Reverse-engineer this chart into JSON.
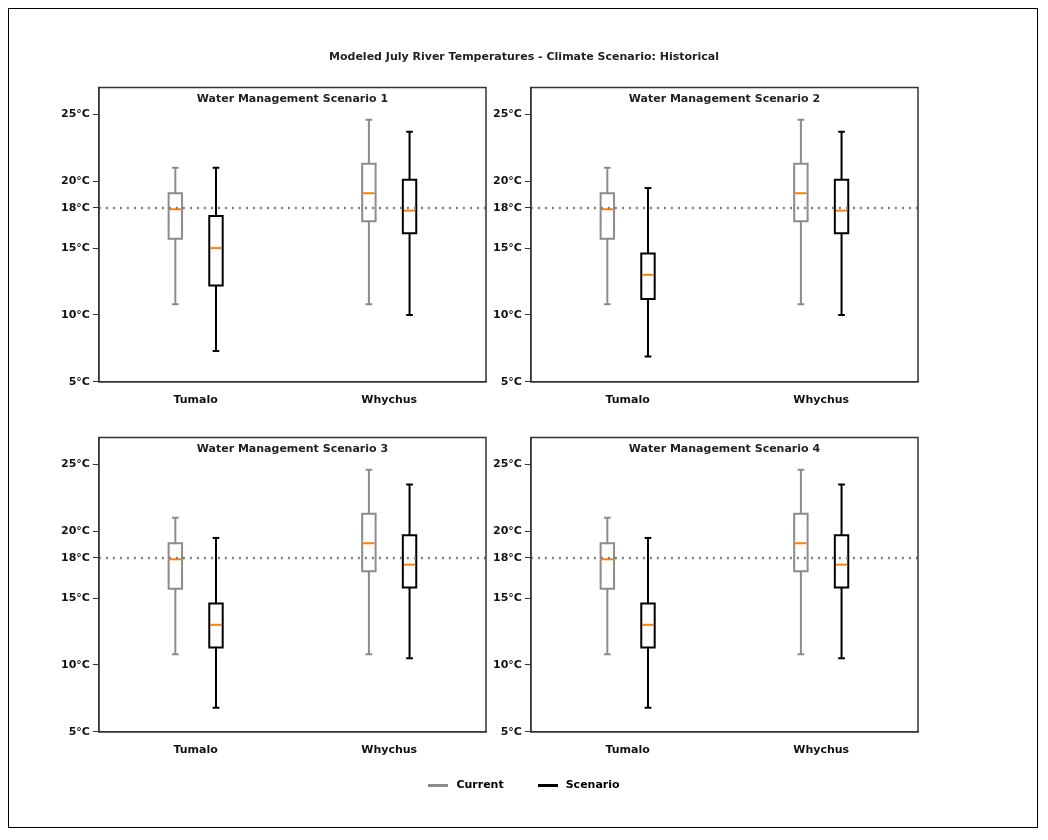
{
  "chart_data": [
    {
      "type": "box",
      "title": "Water Management Scenario 1",
      "annotations": [
        "Modeled July River Temperatures - Climate Scenario: Historical"
      ],
      "categories": [
        "Tumalo",
        "Whychus"
      ],
      "ylim": [
        5,
        27
      ],
      "yticks": [
        {
          "value": 5,
          "label": "5°C"
        },
        {
          "value": 10,
          "label": "10°C"
        },
        {
          "value": 15,
          "label": "15°C"
        },
        {
          "value": 18,
          "label": "18°C"
        },
        {
          "value": 20,
          "label": "20°C"
        },
        {
          "value": 25,
          "label": "25°C"
        }
      ],
      "grid": false,
      "legend": "bottom",
      "ref_lines": [
        {
          "axis": "y",
          "value": 18,
          "color": "#808080",
          "line_style": "dotted"
        }
      ],
      "series": [
        {
          "name": "Current",
          "color": "#8c8c8c",
          "boxes": [
            {
              "low": 10.8,
              "q1": 15.7,
              "median": 17.9,
              "q3": 19.1,
              "high": 21.0
            },
            {
              "low": 10.8,
              "q1": 17.0,
              "median": 19.1,
              "q3": 21.3,
              "high": 24.6
            }
          ]
        },
        {
          "name": "Scenario",
          "color": "#000000",
          "boxes": [
            {
              "low": 7.3,
              "q1": 12.2,
              "median": 15.0,
              "q3": 17.4,
              "high": 21.0
            },
            {
              "low": 10.0,
              "q1": 16.1,
              "median": 17.8,
              "q3": 20.1,
              "high": 23.7
            }
          ]
        }
      ]
    },
    {
      "type": "box",
      "title": "Water Management Scenario 2",
      "categories": [
        "Tumalo",
        "Whychus"
      ],
      "ylim": [
        5,
        27
      ],
      "yticks": [
        {
          "value": 5,
          "label": "5°C"
        },
        {
          "value": 10,
          "label": "10°C"
        },
        {
          "value": 15,
          "label": "15°C"
        },
        {
          "value": 18,
          "label": "18°C"
        },
        {
          "value": 20,
          "label": "20°C"
        },
        {
          "value": 25,
          "label": "25°C"
        }
      ],
      "grid": false,
      "ref_lines": [
        {
          "axis": "y",
          "value": 18,
          "color": "#808080",
          "line_style": "dotted"
        }
      ],
      "series": [
        {
          "name": "Current",
          "color": "#8c8c8c",
          "boxes": [
            {
              "low": 10.8,
              "q1": 15.7,
              "median": 17.9,
              "q3": 19.1,
              "high": 21.0
            },
            {
              "low": 10.8,
              "q1": 17.0,
              "median": 19.1,
              "q3": 21.3,
              "high": 24.6
            }
          ]
        },
        {
          "name": "Scenario",
          "color": "#000000",
          "boxes": [
            {
              "low": 6.9,
              "q1": 11.2,
              "median": 13.0,
              "q3": 14.6,
              "high": 19.5
            },
            {
              "low": 10.0,
              "q1": 16.1,
              "median": 17.8,
              "q3": 20.1,
              "high": 23.7
            }
          ]
        }
      ]
    },
    {
      "type": "box",
      "title": "Water Management Scenario 3",
      "categories": [
        "Tumalo",
        "Whychus"
      ],
      "ylim": [
        5,
        27
      ],
      "yticks": [
        {
          "value": 5,
          "label": "5°C"
        },
        {
          "value": 10,
          "label": "10°C"
        },
        {
          "value": 15,
          "label": "15°C"
        },
        {
          "value": 18,
          "label": "18°C"
        },
        {
          "value": 20,
          "label": "20°C"
        },
        {
          "value": 25,
          "label": "25°C"
        }
      ],
      "grid": false,
      "ref_lines": [
        {
          "axis": "y",
          "value": 18,
          "color": "#808080",
          "line_style": "dotted"
        }
      ],
      "series": [
        {
          "name": "Current",
          "color": "#8c8c8c",
          "boxes": [
            {
              "low": 10.8,
              "q1": 15.7,
              "median": 17.9,
              "q3": 19.1,
              "high": 21.0
            },
            {
              "low": 10.8,
              "q1": 17.0,
              "median": 19.1,
              "q3": 21.3,
              "high": 24.6
            }
          ]
        },
        {
          "name": "Scenario",
          "color": "#000000",
          "boxes": [
            {
              "low": 6.8,
              "q1": 11.3,
              "median": 13.0,
              "q3": 14.6,
              "high": 19.5
            },
            {
              "low": 10.5,
              "q1": 15.8,
              "median": 17.5,
              "q3": 19.7,
              "high": 23.5
            }
          ]
        }
      ]
    },
    {
      "type": "box",
      "title": "Water Management Scenario 4",
      "categories": [
        "Tumalo",
        "Whychus"
      ],
      "ylim": [
        5,
        27
      ],
      "yticks": [
        {
          "value": 5,
          "label": "5°C"
        },
        {
          "value": 10,
          "label": "10°C"
        },
        {
          "value": 15,
          "label": "15°C"
        },
        {
          "value": 18,
          "label": "18°C"
        },
        {
          "value": 20,
          "label": "20°C"
        },
        {
          "value": 25,
          "label": "25°C"
        }
      ],
      "grid": false,
      "ref_lines": [
        {
          "axis": "y",
          "value": 18,
          "color": "#808080",
          "line_style": "dotted"
        }
      ],
      "series": [
        {
          "name": "Current",
          "color": "#8c8c8c",
          "boxes": [
            {
              "low": 10.8,
              "q1": 15.7,
              "median": 17.9,
              "q3": 19.1,
              "high": 21.0
            },
            {
              "low": 10.8,
              "q1": 17.0,
              "median": 19.1,
              "q3": 21.3,
              "high": 24.6
            }
          ]
        },
        {
          "name": "Scenario",
          "color": "#000000",
          "boxes": [
            {
              "low": 6.8,
              "q1": 11.3,
              "median": 13.0,
              "q3": 14.6,
              "high": 19.5
            },
            {
              "low": 10.5,
              "q1": 15.8,
              "median": 17.5,
              "q3": 19.7,
              "high": 23.5
            }
          ]
        }
      ]
    }
  ]
}
